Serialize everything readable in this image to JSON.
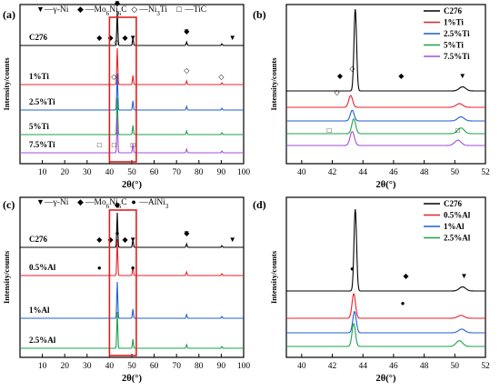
{
  "figure": {
    "xlabel": "2θ(°)",
    "ylabel": "Intensity/counts"
  },
  "chart_data": [
    {
      "panel": "(a)",
      "type": "line",
      "xlim": [
        0,
        100
      ],
      "xticks": [
        10,
        20,
        30,
        40,
        50,
        60,
        70,
        80,
        90,
        100
      ],
      "legend": [
        {
          "symbol": "▼",
          "text": "—γ-Ni"
        },
        {
          "symbol": "◆",
          "text": "—Mo6Ni6C"
        },
        {
          "symbol": "◇",
          "text": "—Ni3Ti"
        },
        {
          "symbol": "□",
          "text": "—TiC"
        }
      ],
      "series": [
        {
          "name": "C276",
          "color": "#000000",
          "peaks": [
            [
              43.5,
              1.0
            ],
            [
              50.5,
              0.22
            ],
            [
              74.5,
              0.1
            ],
            [
              90.3,
              0.05
            ]
          ]
        },
        {
          "name": "1%Ti",
          "color": "#e8232a",
          "peaks": [
            [
              43.5,
              1.0
            ],
            [
              50.5,
              0.25
            ],
            [
              74.5,
              0.1
            ],
            [
              90.3,
              0.05
            ]
          ]
        },
        {
          "name": "2.5%Ti",
          "color": "#1f5fd0",
          "peaks": [
            [
              43.5,
              1.0
            ],
            [
              50.5,
              0.25
            ],
            [
              74.5,
              0.1
            ],
            [
              90.3,
              0.05
            ]
          ]
        },
        {
          "name": "5%Ti",
          "color": "#1aa34a",
          "peaks": [
            [
              43.5,
              1.0
            ],
            [
              50.5,
              0.25
            ],
            [
              74.5,
              0.1
            ],
            [
              90.3,
              0.05
            ]
          ]
        },
        {
          "name": "7.5%Ti",
          "color": "#a24fd8",
          "peaks": [
            [
              43.5,
              1.0
            ],
            [
              50.5,
              0.25
            ],
            [
              74.5,
              0.1
            ],
            [
              90.3,
              0.05
            ]
          ]
        }
      ],
      "annotations": [
        {
          "series": "C276",
          "marks": [
            {
              "sym": "◆",
              "x": 35.5
            },
            {
              "sym": "◆",
              "x": 40.5
            },
            {
              "sym": "▼",
              "x": 43.5
            },
            {
              "sym": "◆",
              "x": 43.5
            },
            {
              "sym": "◆",
              "x": 47
            },
            {
              "sym": "▼",
              "x": 50.5
            },
            {
              "sym": "▼",
              "x": 74.5
            },
            {
              "sym": "◆",
              "x": 74.5
            },
            {
              "sym": "▼",
              "x": 95
            }
          ]
        },
        {
          "series": "1%Ti",
          "marks": [
            {
              "sym": "◇",
              "x": 43.2
            },
            {
              "sym": "◇",
              "x": 42
            },
            {
              "sym": "◇",
              "x": 74.5
            },
            {
              "sym": "◇",
              "x": 90
            }
          ]
        },
        {
          "series": "7.5%Ti",
          "marks": [
            {
              "sym": "□",
              "x": 35.5
            },
            {
              "sym": "□",
              "x": 42
            },
            {
              "sym": "□",
              "x": 50.5
            }
          ]
        }
      ],
      "highlight_box": [
        40,
        52
      ]
    },
    {
      "panel": "(b)",
      "type": "line",
      "xlim": [
        39,
        52
      ],
      "xticks": [
        40,
        42,
        44,
        46,
        48,
        50,
        52
      ],
      "series": [
        {
          "name": "C276",
          "color": "#000000",
          "peaks": [
            [
              43.5,
              10,
              0.12
            ],
            [
              50.5,
              0.5,
              0.3
            ]
          ]
        },
        {
          "name": "1%Ti",
          "color": "#e8232a",
          "peaks": [
            [
              43.2,
              1.45,
              0.18
            ],
            [
              50.3,
              0.45,
              0.3
            ]
          ]
        },
        {
          "name": "2.5%Ti",
          "color": "#1f5fd0",
          "peaks": [
            [
              43.3,
              1.3,
              0.18
            ],
            [
              50.4,
              0.5,
              0.3
            ]
          ]
        },
        {
          "name": "5%Ti",
          "color": "#1aa34a",
          "peaks": [
            [
              43.4,
              1.8,
              0.18
            ],
            [
              50.4,
              0.7,
              0.3
            ]
          ]
        },
        {
          "name": "7.5%Ti",
          "color": "#a24fd8",
          "peaks": [
            [
              43.3,
              1.7,
              0.2
            ],
            [
              50.2,
              0.65,
              0.3
            ]
          ]
        }
      ],
      "annotations": [
        {
          "series": "C276",
          "marks": [
            {
              "sym": "◆",
              "x": 42.5
            },
            {
              "sym": "◇",
              "x": 43.3
            },
            {
              "sym": "◆",
              "x": 46.5
            },
            {
              "sym": "▼",
              "x": 50.5
            }
          ]
        },
        {
          "series": "1%Ti",
          "marks": [
            {
              "sym": "◇",
              "x": 42.3
            }
          ]
        },
        {
          "series": "7.5%Ti",
          "marks": [
            {
              "sym": "□",
              "x": 41.8
            },
            {
              "sym": "□",
              "x": 50.2
            }
          ]
        }
      ]
    },
    {
      "panel": "(c)",
      "type": "line",
      "xlim": [
        0,
        100
      ],
      "xticks": [
        10,
        20,
        30,
        40,
        50,
        60,
        70,
        80,
        90,
        100
      ],
      "legend": [
        {
          "symbol": "▼",
          "text": "—γ-Ni"
        },
        {
          "symbol": "◆",
          "text": "—Mo6Ni6C"
        },
        {
          "symbol": "●",
          "text": "—AlNi3"
        }
      ],
      "series": [
        {
          "name": "C276",
          "color": "#000000",
          "peaks": [
            [
              43.5,
              1.0
            ],
            [
              50.5,
              0.22
            ],
            [
              74.5,
              0.1
            ],
            [
              90.3,
              0.05
            ]
          ]
        },
        {
          "name": "0.5%Al",
          "color": "#e8232a",
          "peaks": [
            [
              43.5,
              1.0
            ],
            [
              50.5,
              0.25
            ],
            [
              74.5,
              0.1
            ],
            [
              90.3,
              0.05
            ]
          ]
        },
        {
          "name": "1%Al",
          "color": "#1f5fd0",
          "peaks": [
            [
              43.5,
              1.0
            ],
            [
              50.5,
              0.25
            ],
            [
              74.5,
              0.1
            ],
            [
              90.3,
              0.05
            ]
          ]
        },
        {
          "name": "2.5%Al",
          "color": "#1aa34a",
          "peaks": [
            [
              43.5,
              1.0
            ],
            [
              50.5,
              0.25
            ],
            [
              74.5,
              0.1
            ],
            [
              90.3,
              0.05
            ]
          ]
        }
      ],
      "annotations": [
        {
          "series": "C276",
          "marks": [
            {
              "sym": "◆",
              "x": 35.5
            },
            {
              "sym": "◆",
              "x": 40.5
            },
            {
              "sym": "▼",
              "x": 43.5
            },
            {
              "sym": "◆",
              "x": 43.5
            },
            {
              "sym": "◆",
              "x": 47
            },
            {
              "sym": "▼",
              "x": 50.5
            },
            {
              "sym": "▼",
              "x": 74.5
            },
            {
              "sym": "◆",
              "x": 74.5
            },
            {
              "sym": "▼",
              "x": 95
            }
          ]
        },
        {
          "series": "0.5%Al",
          "marks": [
            {
              "sym": "●",
              "x": 35.5
            },
            {
              "sym": "●",
              "x": 43.5
            },
            {
              "sym": "●",
              "x": 50.5
            }
          ]
        }
      ],
      "highlight_box": [
        40,
        52
      ]
    },
    {
      "panel": "(d)",
      "type": "line",
      "xlim": [
        39,
        52
      ],
      "xticks": [
        40,
        42,
        44,
        46,
        48,
        50,
        52
      ],
      "series": [
        {
          "name": "C276",
          "color": "#000000",
          "peaks": [
            [
              43.5,
              10,
              0.12
            ],
            [
              50.5,
              0.5,
              0.3
            ]
          ]
        },
        {
          "name": "0.5%Al",
          "color": "#e8232a",
          "peaks": [
            [
              43.4,
              3.0,
              0.16
            ],
            [
              50.4,
              0.35,
              0.3
            ]
          ]
        },
        {
          "name": "1%Al",
          "color": "#1f5fd0",
          "peaks": [
            [
              43.45,
              2.6,
              0.16
            ],
            [
              50.45,
              0.45,
              0.3
            ]
          ]
        },
        {
          "name": "2.5%Al",
          "color": "#1aa34a",
          "peaks": [
            [
              43.4,
              2.8,
              0.16
            ],
            [
              50.3,
              0.7,
              0.3
            ]
          ]
        }
      ],
      "annotations": [
        {
          "series": "C276",
          "marks": [
            {
              "sym": "●",
              "x": 43.3
            },
            {
              "sym": "◆",
              "x": 46.8
            },
            {
              "sym": "▼",
              "x": 50.6
            }
          ]
        },
        {
          "series": "0.5%Al",
          "marks": [
            {
              "sym": "●",
              "x": 46.6
            }
          ]
        }
      ]
    }
  ]
}
